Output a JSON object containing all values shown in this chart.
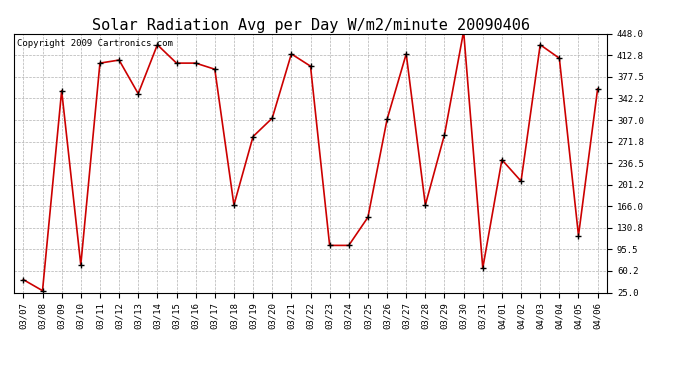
{
  "title": "Solar Radiation Avg per Day W/m2/minute 20090406",
  "copyright": "Copyright 2009 Cartronics.com",
  "labels": [
    "03/07",
    "03/08",
    "03/09",
    "03/10",
    "03/11",
    "03/12",
    "03/13",
    "03/14",
    "03/15",
    "03/16",
    "03/17",
    "03/18",
    "03/19",
    "03/20",
    "03/21",
    "03/22",
    "03/23",
    "03/24",
    "03/25",
    "03/26",
    "03/27",
    "03/28",
    "03/29",
    "03/30",
    "03/31",
    "04/01",
    "04/02",
    "04/03",
    "04/04",
    "04/05",
    "04/06"
  ],
  "values": [
    46,
    28,
    355,
    70,
    400,
    405,
    350,
    430,
    400,
    400,
    390,
    168,
    280,
    310,
    415,
    395,
    102,
    102,
    148,
    308,
    415,
    168,
    283,
    452,
    65,
    242,
    207,
    430,
    408,
    118,
    358
  ],
  "line_color": "#cc0000",
  "marker": "+",
  "marker_size": 4,
  "marker_color": "#000000",
  "bg_color": "#ffffff",
  "grid_color": "#aaaaaa",
  "ylim": [
    25.0,
    448.0
  ],
  "yticks": [
    25.0,
    60.2,
    95.5,
    130.8,
    166.0,
    201.2,
    236.5,
    271.8,
    307.0,
    342.2,
    377.5,
    412.8,
    448.0
  ],
  "title_fontsize": 11,
  "tick_fontsize": 6.5,
  "copyright_fontsize": 6.5
}
